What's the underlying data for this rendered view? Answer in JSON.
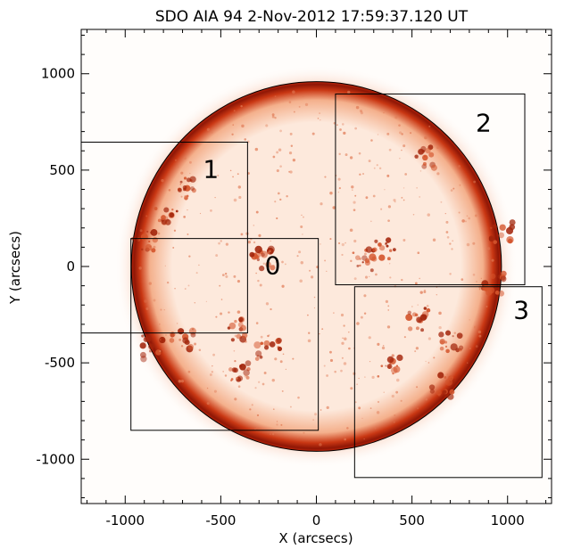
{
  "title": "SDO AIA 94   2-Nov-2012 17:59:37.120 UT",
  "axes": {
    "x_label": "X (arcsecs)",
    "y_label": "Y (arcsecs)",
    "x_ticks": [
      "-1000",
      "-500",
      "0",
      "500",
      "1000"
    ],
    "y_ticks": [
      "1000",
      "500",
      "0",
      "-500",
      "-1000"
    ],
    "x_range": [
      -1230,
      1230
    ],
    "y_range": [
      -1230,
      1230
    ]
  },
  "solar_disk": {
    "radius_arcsec": 968,
    "colormap": "red-orange heat"
  },
  "regions": [
    {
      "label": "0",
      "x_min": -970,
      "x_max": 10,
      "y_min": -850,
      "y_max": 145
    },
    {
      "label": "1",
      "x_min": -1230,
      "x_max": -360,
      "y_min": -345,
      "y_max": 645
    },
    {
      "label": "2",
      "x_min": 100,
      "x_max": 1090,
      "y_min": -95,
      "y_max": 895
    },
    {
      "label": "3",
      "x_min": 200,
      "x_max": 1180,
      "y_min": -1095,
      "y_max": -105
    }
  ],
  "colors": {
    "disk_fill": "#fbe7d9",
    "limb": "#b8240a",
    "hot": "#8a1a06",
    "frame": "#000000"
  }
}
